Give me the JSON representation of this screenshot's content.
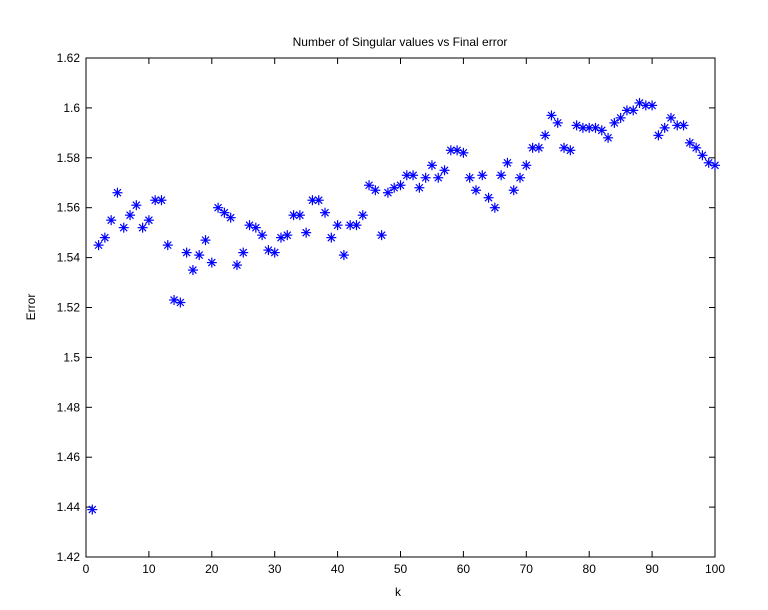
{
  "chart_data": {
    "type": "scatter",
    "title": "Number of Singular values vs Final error",
    "xlabel": "k",
    "ylabel": "Error",
    "xlim": [
      0,
      100
    ],
    "ylim": [
      1.42,
      1.62
    ],
    "xticks": [
      "0",
      "10",
      "20",
      "30",
      "40",
      "50",
      "60",
      "70",
      "80",
      "90",
      "100"
    ],
    "yticks": [
      "1.42",
      "1.44",
      "1.46",
      "1.48",
      "1.5",
      "1.52",
      "1.54",
      "1.56",
      "1.58",
      "1.6",
      "1.62"
    ],
    "grid": false,
    "marker": "asterisk",
    "marker_color": "#0000ff",
    "x": [
      1,
      2,
      3,
      4,
      5,
      6,
      7,
      8,
      9,
      10,
      11,
      12,
      13,
      14,
      15,
      16,
      17,
      18,
      19,
      20,
      21,
      22,
      23,
      24,
      25,
      26,
      27,
      28,
      29,
      30,
      31,
      32,
      33,
      34,
      35,
      36,
      37,
      38,
      39,
      40,
      41,
      42,
      43,
      44,
      45,
      46,
      47,
      48,
      49,
      50,
      51,
      52,
      53,
      54,
      55,
      56,
      57,
      58,
      59,
      60,
      61,
      62,
      63,
      64,
      65,
      66,
      67,
      68,
      69,
      70,
      71,
      72,
      73,
      74,
      75,
      76,
      77,
      78,
      79,
      80,
      81,
      82,
      83,
      84,
      85,
      86,
      87,
      88,
      89,
      90,
      91,
      92,
      93,
      94,
      95,
      96,
      97,
      98,
      99,
      100
    ],
    "y": [
      1.439,
      1.545,
      1.548,
      1.555,
      1.566,
      1.552,
      1.557,
      1.561,
      1.552,
      1.555,
      1.563,
      1.563,
      1.545,
      1.523,
      1.522,
      1.542,
      1.535,
      1.541,
      1.547,
      1.538,
      1.56,
      1.558,
      1.556,
      1.537,
      1.542,
      1.553,
      1.552,
      1.549,
      1.543,
      1.542,
      1.548,
      1.549,
      1.557,
      1.557,
      1.55,
      1.563,
      1.563,
      1.558,
      1.548,
      1.553,
      1.541,
      1.553,
      1.553,
      1.557,
      1.569,
      1.567,
      1.549,
      1.566,
      1.568,
      1.569,
      1.573,
      1.573,
      1.568,
      1.572,
      1.577,
      1.572,
      1.575,
      1.583,
      1.583,
      1.582,
      1.572,
      1.567,
      1.573,
      1.564,
      1.56,
      1.573,
      1.578,
      1.567,
      1.572,
      1.577,
      1.584,
      1.584,
      1.589,
      1.597,
      1.594,
      1.584,
      1.583,
      1.593,
      1.592,
      1.592,
      1.592,
      1.591,
      1.588,
      1.594,
      1.596,
      1.599,
      1.599,
      1.602,
      1.601,
      1.601,
      1.589,
      1.592,
      1.596,
      1.593,
      1.593,
      1.586,
      1.584,
      1.581,
      1.578,
      1.577
    ]
  }
}
